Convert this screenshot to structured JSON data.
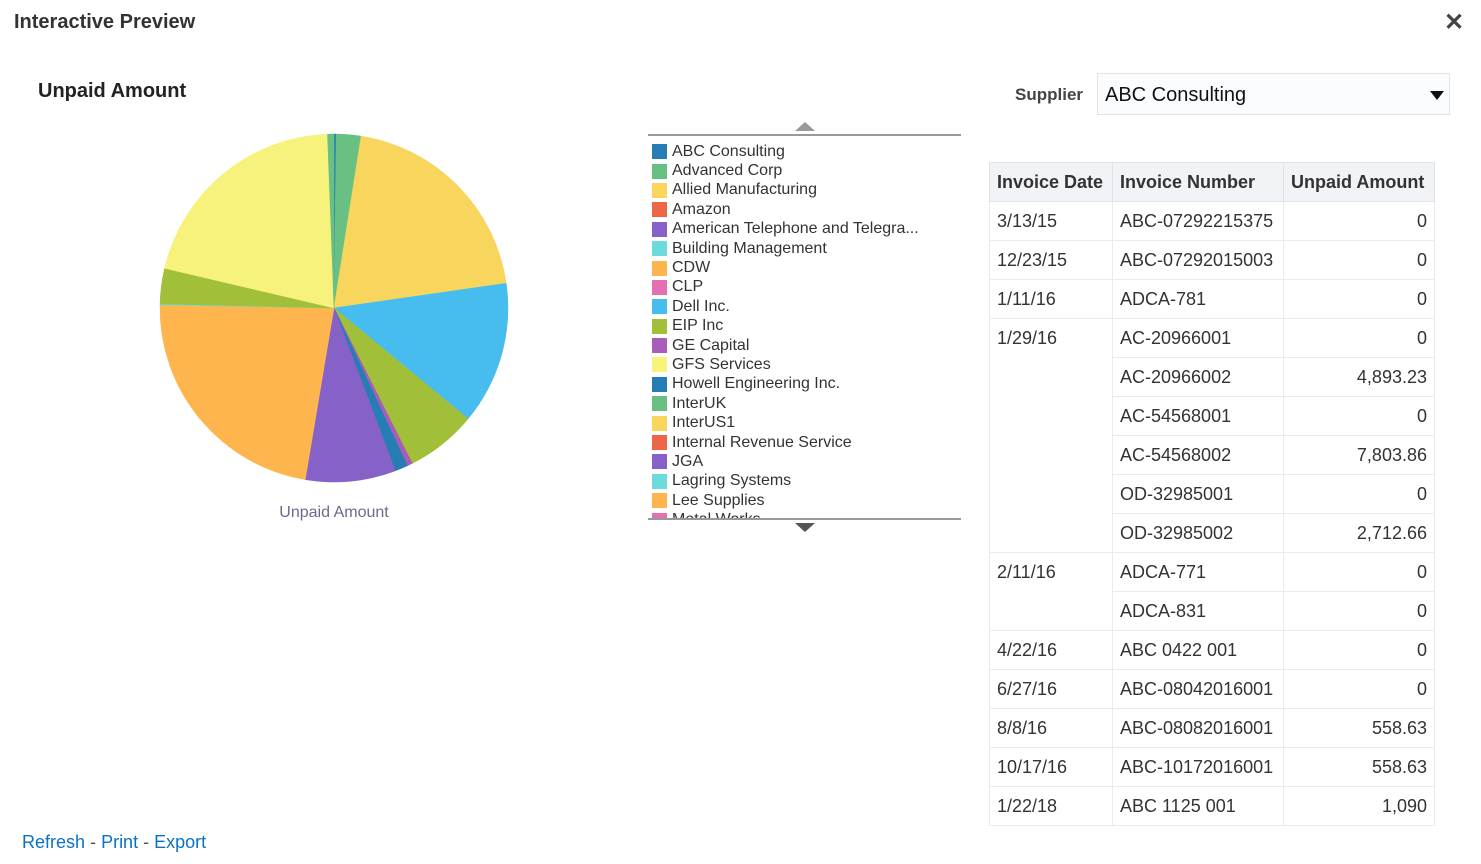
{
  "dialog": {
    "title": "Interactive Preview",
    "close_icon": "close-icon"
  },
  "chart_data": {
    "type": "pie",
    "title": "Unpaid Amount",
    "series_label": "Unpaid Amount",
    "legend_position": "right",
    "legend": [
      {
        "name": "ABC Consulting",
        "color": "#267DB3"
      },
      {
        "name": "Advanced Corp",
        "color": "#68C182"
      },
      {
        "name": "Allied Manufacturing",
        "color": "#FAD55C"
      },
      {
        "name": "Amazon",
        "color": "#ED6647"
      },
      {
        "name": "American Telephone and Telegra...",
        "color": "#8561C8"
      },
      {
        "name": "Building Management",
        "color": "#6DDBDB"
      },
      {
        "name": "CDW",
        "color": "#FFB54D"
      },
      {
        "name": "CLP",
        "color": "#E371B2"
      },
      {
        "name": "Dell Inc.",
        "color": "#47BDEF"
      },
      {
        "name": "EIP Inc",
        "color": "#A2BF39"
      },
      {
        "name": "GE Capital",
        "color": "#A75DBA"
      },
      {
        "name": "GFS Services",
        "color": "#F7F37B"
      },
      {
        "name": "Howell Engineering Inc.",
        "color": "#267DB3"
      },
      {
        "name": "InterUK",
        "color": "#68C182"
      },
      {
        "name": "InterUS1",
        "color": "#FAD55C"
      },
      {
        "name": "Internal Revenue Service",
        "color": "#ED6647"
      },
      {
        "name": "JGA",
        "color": "#8561C8"
      },
      {
        "name": "Lagring Systems",
        "color": "#6DDBDB"
      },
      {
        "name": "Lee Supplies",
        "color": "#FFB54D"
      },
      {
        "name": "Metal Works",
        "color": "#E371B2"
      }
    ],
    "slices_percent": [
      {
        "value": 0.2,
        "color": "#267DB3"
      },
      {
        "value": 2.3,
        "color": "#68C182"
      },
      {
        "value": 20.3,
        "color": "#F8D55C"
      },
      {
        "value": 13.3,
        "color": "#47BDEF"
      },
      {
        "value": 6.6,
        "color": "#A2BF39"
      },
      {
        "value": 0.5,
        "color": "#A75DBA"
      },
      {
        "value": 1.2,
        "color": "#267DB3"
      },
      {
        "value": 8.4,
        "color": "#8561C8"
      },
      {
        "value": 22.7,
        "color": "#FFB54D"
      },
      {
        "value": 0.1,
        "color": "#6DDBDB"
      },
      {
        "value": 3.3,
        "color": "#A2BF39"
      },
      {
        "value": 20.8,
        "color": "#F7F27B"
      },
      {
        "value": 0.6,
        "color": "#68C182"
      }
    ]
  },
  "filter": {
    "label": "Supplier",
    "value": "ABC Consulting"
  },
  "table": {
    "headers": [
      "Invoice Date",
      "Invoice Number",
      "Unpaid Amount"
    ],
    "groups": [
      {
        "date": "3/13/15",
        "rows": [
          [
            "ABC-07292215375",
            "0"
          ]
        ]
      },
      {
        "date": "12/23/15",
        "rows": [
          [
            "ABC-07292015003",
            "0"
          ]
        ]
      },
      {
        "date": "1/11/16",
        "rows": [
          [
            "ADCA-781",
            "0"
          ]
        ]
      },
      {
        "date": "1/29/16",
        "rows": [
          [
            "AC-20966001",
            "0"
          ],
          [
            "AC-20966002",
            "4,893.23"
          ],
          [
            "AC-54568001",
            "0"
          ],
          [
            "AC-54568002",
            "7,803.86"
          ],
          [
            "OD-32985001",
            "0"
          ],
          [
            "OD-32985002",
            "2,712.66"
          ]
        ]
      },
      {
        "date": "2/11/16",
        "rows": [
          [
            "ADCA-771",
            "0"
          ],
          [
            "ADCA-831",
            "0"
          ]
        ]
      },
      {
        "date": "4/22/16",
        "rows": [
          [
            "ABC 0422 001",
            "0"
          ]
        ]
      },
      {
        "date": "6/27/16",
        "rows": [
          [
            "ABC-08042016001",
            "0"
          ]
        ]
      },
      {
        "date": "8/8/16",
        "rows": [
          [
            "ABC-08082016001",
            "558.63"
          ]
        ]
      },
      {
        "date": "10/17/16",
        "rows": [
          [
            "ABC-10172016001",
            "558.63"
          ]
        ]
      },
      {
        "date": "1/22/18",
        "rows": [
          [
            "ABC 1125 001",
            "1,090"
          ]
        ]
      }
    ]
  },
  "footer": {
    "refresh": "Refresh",
    "print": "Print",
    "export": "Export",
    "sep": "-"
  }
}
